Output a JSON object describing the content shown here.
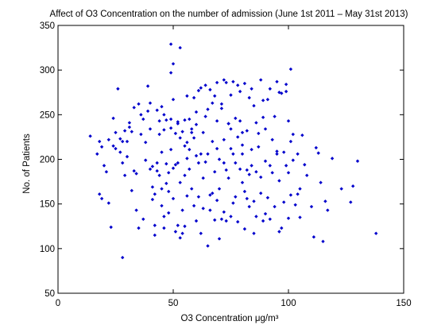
{
  "chart_data": {
    "type": "scatter",
    "title": "Affect of O3 Concentration on the number of admission (June 1st 2011 – May 31st 2013)",
    "xlabel": "O3 Concentration μg/m³",
    "ylabel": "No. of Patients",
    "xlim": [
      0,
      150
    ],
    "ylim": [
      50,
      350
    ],
    "xticks": [
      0,
      50,
      100,
      150
    ],
    "yticks": [
      50,
      100,
      150,
      200,
      250,
      300,
      350
    ],
    "grid": false,
    "marker": "point",
    "series": [
      {
        "color": "#0000cc",
        "points": [
          [
            14,
            226
          ],
          [
            17,
            206
          ],
          [
            18,
            220
          ],
          [
            18,
            161
          ],
          [
            19,
            214
          ],
          [
            19,
            156
          ],
          [
            20,
            193
          ],
          [
            21,
            186
          ],
          [
            22,
            151
          ],
          [
            22,
            222
          ],
          [
            23,
            124
          ],
          [
            24,
            246
          ],
          [
            24,
            215
          ],
          [
            25,
            212
          ],
          [
            25,
            230
          ],
          [
            26,
            279
          ],
          [
            27,
            223
          ],
          [
            27,
            208
          ],
          [
            28,
            220
          ],
          [
            28,
            196
          ],
          [
            28,
            90
          ],
          [
            29,
            232
          ],
          [
            29,
            182
          ],
          [
            30,
            203
          ],
          [
            30,
            220
          ],
          [
            31,
            236
          ],
          [
            31,
            241
          ],
          [
            32,
            231
          ],
          [
            32,
            165
          ],
          [
            33,
            187
          ],
          [
            33,
            258
          ],
          [
            34,
            184
          ],
          [
            34,
            143
          ],
          [
            35,
            262
          ],
          [
            35,
            123
          ],
          [
            36,
            250
          ],
          [
            36,
            228
          ],
          [
            37,
            245
          ],
          [
            37,
            133
          ],
          [
            38,
            199
          ],
          [
            38,
            219
          ],
          [
            39,
            282
          ],
          [
            39,
            254
          ],
          [
            40,
            189
          ],
          [
            40,
            263
          ],
          [
            40,
            234
          ],
          [
            41,
            192
          ],
          [
            41,
            169
          ],
          [
            41,
            155
          ],
          [
            42,
            161
          ],
          [
            42,
            126
          ],
          [
            42,
            115
          ],
          [
            43,
            187
          ],
          [
            43,
            196
          ],
          [
            43,
            255
          ],
          [
            44,
            243
          ],
          [
            44,
            228
          ],
          [
            44,
            182
          ],
          [
            45,
            259
          ],
          [
            45,
            208
          ],
          [
            45,
            148
          ],
          [
            45,
            167
          ],
          [
            46,
            250
          ],
          [
            46,
            233
          ],
          [
            46,
            136
          ],
          [
            46,
            123
          ],
          [
            47,
            195
          ],
          [
            47,
            244
          ],
          [
            47,
            173
          ],
          [
            48,
            185
          ],
          [
            48,
            164
          ],
          [
            48,
            140
          ],
          [
            49,
            235
          ],
          [
            49,
            211
          ],
          [
            49,
            297
          ],
          [
            49,
            245
          ],
          [
            49,
            329
          ],
          [
            50,
            267
          ],
          [
            50,
            156
          ],
          [
            50,
            190
          ],
          [
            50,
            307
          ],
          [
            51,
            119
          ],
          [
            51,
            194
          ],
          [
            51,
            229
          ],
          [
            52,
            126
          ],
          [
            52,
            240
          ],
          [
            52,
            242
          ],
          [
            52,
            196
          ],
          [
            53,
            224
          ],
          [
            53,
            325
          ],
          [
            53,
            112
          ],
          [
            53,
            174
          ],
          [
            54,
            231
          ],
          [
            54,
            143
          ],
          [
            54,
            117
          ],
          [
            55,
            215
          ],
          [
            55,
            182
          ],
          [
            55,
            244
          ],
          [
            55,
            125
          ],
          [
            56,
            219
          ],
          [
            56,
            159
          ],
          [
            56,
            201
          ],
          [
            56,
            271
          ],
          [
            57,
            211
          ],
          [
            57,
            189
          ],
          [
            57,
            245
          ],
          [
            58,
            167
          ],
          [
            58,
            230
          ],
          [
            58,
            234
          ],
          [
            59,
            224
          ],
          [
            59,
            269
          ],
          [
            59,
            148
          ],
          [
            60,
            253
          ],
          [
            60,
            204
          ],
          [
            60,
            239
          ],
          [
            60,
            131
          ],
          [
            61,
            196
          ],
          [
            61,
            277
          ],
          [
            61,
            158
          ],
          [
            62,
            206
          ],
          [
            62,
            280
          ],
          [
            62,
            117
          ],
          [
            63,
            230
          ],
          [
            63,
            179
          ],
          [
            63,
            145
          ],
          [
            64,
            197
          ],
          [
            64,
            248
          ],
          [
            64,
            283
          ],
          [
            65,
            206
          ],
          [
            65,
            256
          ],
          [
            65,
            103
          ],
          [
            66,
            278
          ],
          [
            66,
            160
          ],
          [
            66,
            143
          ],
          [
            67,
            220
          ],
          [
            67,
            162
          ],
          [
            67,
            263
          ],
          [
            68,
            132
          ],
          [
            68,
            186
          ],
          [
            68,
            271
          ],
          [
            69,
            286
          ],
          [
            69,
            212
          ],
          [
            69,
            243
          ],
          [
            69,
            154
          ],
          [
            70,
            200
          ],
          [
            70,
            111
          ],
          [
            70,
            167
          ],
          [
            71,
            133
          ],
          [
            71,
            257
          ],
          [
            71,
            262
          ],
          [
            72,
            289
          ],
          [
            72,
            222
          ],
          [
            72,
            141
          ],
          [
            72,
            196
          ],
          [
            73,
            188
          ],
          [
            73,
            131
          ],
          [
            73,
            286
          ],
          [
            74,
            240
          ],
          [
            74,
            179
          ],
          [
            74,
            240
          ],
          [
            75,
            212
          ],
          [
            75,
            272
          ],
          [
            75,
            234
          ],
          [
            75,
            136
          ],
          [
            76,
            287
          ],
          [
            76,
            151
          ],
          [
            76,
            206
          ],
          [
            77,
            196
          ],
          [
            77,
            246
          ],
          [
            77,
            158
          ],
          [
            78,
            130
          ],
          [
            78,
            225
          ],
          [
            78,
            283
          ],
          [
            79,
            243
          ],
          [
            79,
            189
          ],
          [
            79,
            276
          ],
          [
            80,
            216
          ],
          [
            80,
            206
          ],
          [
            80,
            230
          ],
          [
            80,
            174
          ],
          [
            81,
            285
          ],
          [
            81,
            164
          ],
          [
            81,
            122
          ],
          [
            82,
            188
          ],
          [
            82,
            156
          ],
          [
            82,
            232
          ],
          [
            83,
            147
          ],
          [
            83,
            269
          ],
          [
            83,
            183
          ],
          [
            84,
            279
          ],
          [
            84,
            211
          ],
          [
            84,
            193
          ],
          [
            85,
            260
          ],
          [
            85,
            153
          ],
          [
            85,
            117
          ],
          [
            86,
            186
          ],
          [
            86,
            136
          ],
          [
            86,
            241
          ],
          [
            87,
            214
          ],
          [
            87,
            229
          ],
          [
            88,
            289
          ],
          [
            88,
            180
          ],
          [
            88,
            162
          ],
          [
            89,
            266
          ],
          [
            89,
            247
          ],
          [
            89,
            131
          ],
          [
            90,
            139
          ],
          [
            90,
            234
          ],
          [
            90,
            198
          ],
          [
            91,
            157
          ],
          [
            91,
            267
          ],
          [
            92,
            193
          ],
          [
            92,
            133
          ],
          [
            92,
            279
          ],
          [
            93,
            222
          ],
          [
            93,
            185
          ],
          [
            94,
            147
          ],
          [
            94,
            248
          ],
          [
            95,
            287
          ],
          [
            95,
            206
          ],
          [
            95,
            209
          ],
          [
            96,
            176
          ],
          [
            96,
            119
          ],
          [
            96,
            275
          ],
          [
            97,
            274
          ],
          [
            97,
            123
          ],
          [
            98,
            208
          ],
          [
            98,
            152
          ],
          [
            99,
            193
          ],
          [
            99,
            284
          ],
          [
            99,
            276
          ],
          [
            100,
            185
          ],
          [
            100,
            243
          ],
          [
            100,
            134
          ],
          [
            101,
            301
          ],
          [
            101,
            160
          ],
          [
            101,
            220
          ],
          [
            102,
            199
          ],
          [
            102,
            228
          ],
          [
            103,
            149
          ],
          [
            104,
            161
          ],
          [
            104,
            206
          ],
          [
            105,
            167
          ],
          [
            105,
            135
          ],
          [
            106,
            227
          ],
          [
            107,
            194
          ],
          [
            108,
            182
          ],
          [
            110,
            147
          ],
          [
            111,
            113
          ],
          [
            112,
            213
          ],
          [
            113,
            207
          ],
          [
            114,
            174
          ],
          [
            115,
            108
          ],
          [
            116,
            153
          ],
          [
            117,
            143
          ],
          [
            119,
            201
          ],
          [
            123,
            167
          ],
          [
            127,
            152
          ],
          [
            128,
            170
          ],
          [
            130,
            198
          ],
          [
            138,
            117
          ]
        ]
      }
    ]
  }
}
